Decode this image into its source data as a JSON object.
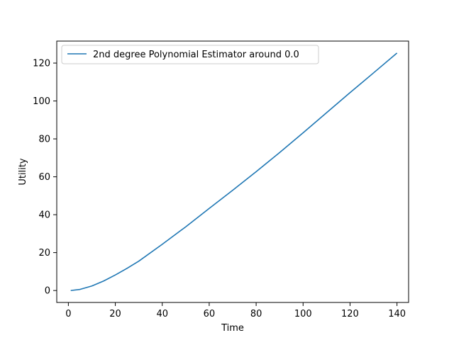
{
  "chart_data": {
    "type": "line",
    "title": "",
    "xlabel": "Time",
    "ylabel": "Utility",
    "xlim": [
      -4.95,
      144.95
    ],
    "ylim": [
      -6.3,
      131.6
    ],
    "x_ticks": [
      0,
      20,
      40,
      60,
      80,
      100,
      120,
      140
    ],
    "y_ticks": [
      0,
      20,
      40,
      60,
      80,
      100,
      120
    ],
    "grid": false,
    "legend_position": "upper-left",
    "series": [
      {
        "name": "2nd degree Polynomial Estimator around 0.0",
        "color": "#1f77b4",
        "x": [
          1,
          5,
          10,
          15,
          20,
          25,
          30,
          40,
          50,
          60,
          70,
          80,
          90,
          100,
          110,
          120,
          130,
          140
        ],
        "y": [
          0,
          0.6,
          2.4,
          5.0,
          8.2,
          11.7,
          15.5,
          24.4,
          33.6,
          43.3,
          52.9,
          62.7,
          72.8,
          83.2,
          93.8,
          104.4,
          114.8,
          125.3
        ]
      }
    ]
  }
}
